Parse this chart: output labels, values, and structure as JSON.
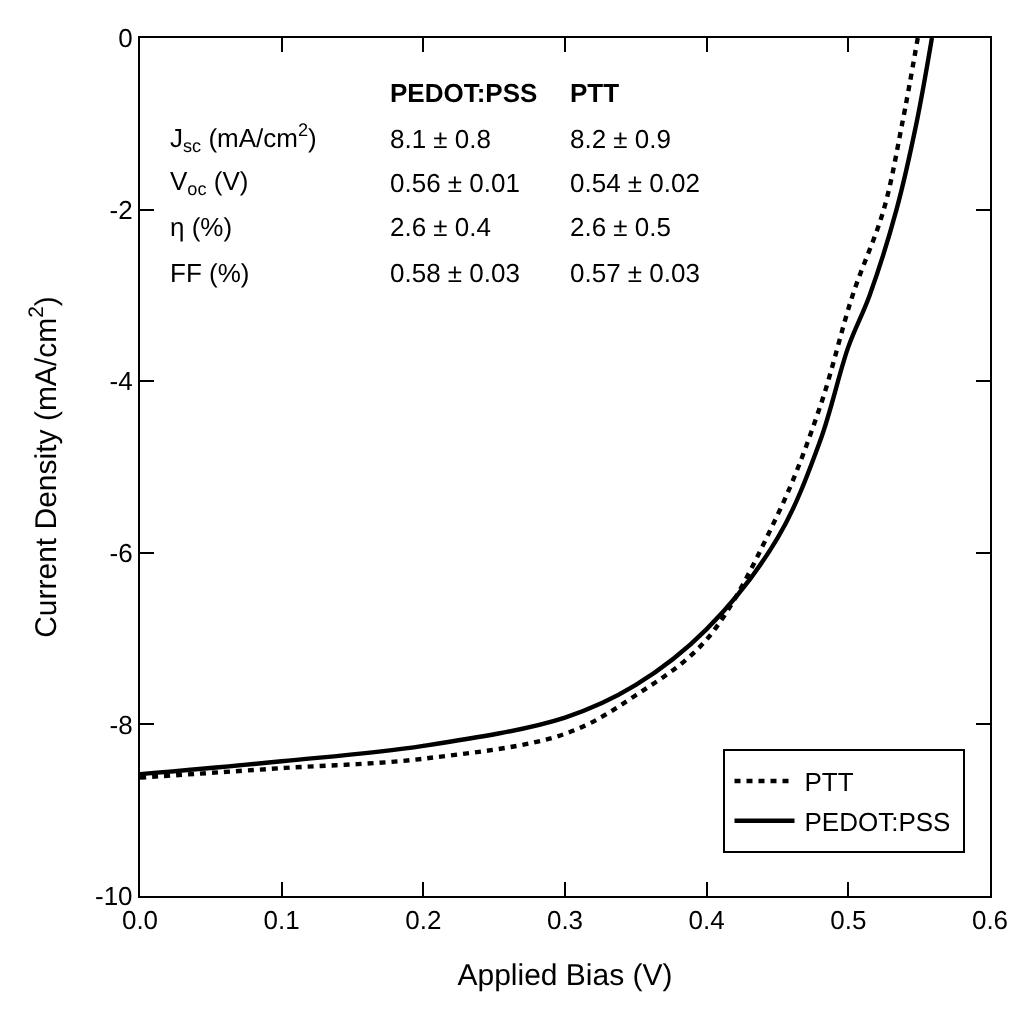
{
  "chart_data": {
    "type": "line",
    "xlabel": "Applied Bias (V)",
    "ylabel": "Current Density (mA/cm$^{2}$)",
    "xlim": [
      0,
      0.6
    ],
    "ylim": [
      -10,
      0
    ],
    "xticks": [
      {
        "value": 0,
        "label": "0.0"
      },
      0.1,
      0.2,
      0.3,
      0.4,
      0.5,
      0.6
    ],
    "yticks": [
      -10,
      -8,
      -6,
      -4,
      -2,
      0
    ],
    "grid": false,
    "legend": "bottom right",
    "marker": "none",
    "series": [
      {
        "name": "PTT",
        "color": "#000000",
        "line_style": "dotted",
        "x": [
          0,
          0.1,
          0.2,
          0.3,
          0.35,
          0.4,
          0.45,
          0.48,
          0.503,
          0.525,
          0.538,
          0.549
        ],
        "values": [
          -8.62,
          -8.51,
          -8.4,
          -8.11,
          -7.66,
          -7.01,
          -5.56,
          -4.3,
          -3.0,
          -2.0,
          -1.0,
          0
        ]
      },
      {
        "name": "PEDOT:PSS",
        "color": "#000000",
        "line_style": "solid",
        "x": [
          0,
          0.1,
          0.2,
          0.3,
          0.35,
          0.4,
          0.45,
          0.48,
          0.5,
          0.515,
          0.534,
          0.548,
          0.559
        ],
        "values": [
          -8.58,
          -8.43,
          -8.25,
          -7.92,
          -7.54,
          -6.89,
          -5.83,
          -4.7,
          -3.6,
          -3.0,
          -2.0,
          -1.0,
          0
        ]
      }
    ],
    "annotations": [
      "PEDOT:PSS",
      "PTT",
      "J$_{sc}$ (mA/cm$^{2}$)",
      "8.1 ± 0.8",
      "8.2 ± 0.9",
      "V$_{oc}$ (V)",
      "0.56 ± 0.01",
      "0.54 ± 0.02",
      "η (%)",
      "2.6 ± 0.4",
      "2.6 ± 0.5",
      "FF (%)",
      "0.58 ± 0.03",
      "0.57 ± 0.03"
    ]
  }
}
